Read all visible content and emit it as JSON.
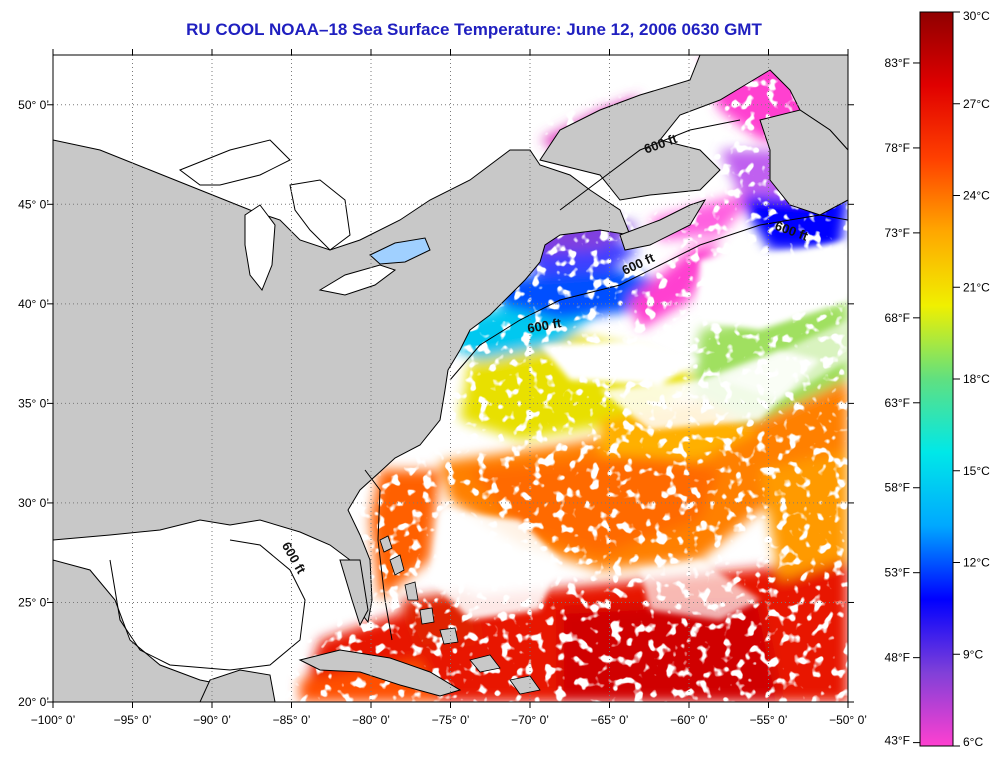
{
  "title": "RU COOL  NOAA–18  Sea Surface Temperature:  June 12, 2006 0630 GMT",
  "map": {
    "lon_range": [
      -100,
      -50
    ],
    "lat_range": [
      20,
      52.5
    ],
    "lon_ticks": [
      "−100° 0’",
      "−95° 0’",
      "−90° 0’",
      "−85° 0’",
      "−80° 0’",
      "−75° 0’",
      "−70° 0’",
      "−65° 0’",
      "−60° 0’",
      "−55° 0’",
      "−50° 0’"
    ],
    "lon_values": [
      -100,
      -95,
      -90,
      -85,
      -80,
      -75,
      -70,
      -65,
      -60,
      -55,
      -50
    ],
    "lat_ticks": [
      "20° 0’",
      "25° 0’",
      "30° 0’",
      "35° 0’",
      "40° 0’",
      "45° 0’",
      "50° 0’"
    ],
    "lat_values": [
      20,
      25,
      30,
      35,
      40,
      45,
      50
    ],
    "isobath_labels": [
      "600 ft",
      "600 ft",
      "600 ft",
      "600 ft",
      "600 ft"
    ],
    "colors": {
      "land": "#c8c8c8",
      "cloud": "#ffffff",
      "grid": "#7a7a7a"
    }
  },
  "colorbar": {
    "min_c": 6,
    "max_c": 30,
    "celsius_labels": [
      "30°C",
      "27°C",
      "24°C",
      "21°C",
      "18°C",
      "15°C",
      "12°C",
      "9°C",
      "6°C"
    ],
    "celsius_values": [
      30,
      27,
      24,
      21,
      18,
      15,
      12,
      9,
      6
    ],
    "fahrenheit_labels": [
      "83°F",
      "78°F",
      "73°F",
      "68°F",
      "63°F",
      "58°F",
      "53°F",
      "48°F",
      "43°F"
    ],
    "fahrenheit_values": [
      83,
      78,
      73,
      68,
      63,
      58,
      53,
      48,
      43
    ],
    "stops": [
      "#ff40d0",
      "#8040d8",
      "#0000ff",
      "#00a8ff",
      "#00e8e8",
      "#60e080",
      "#f0f000",
      "#ffa800",
      "#ff4000",
      "#e00000",
      "#900000"
    ]
  }
}
